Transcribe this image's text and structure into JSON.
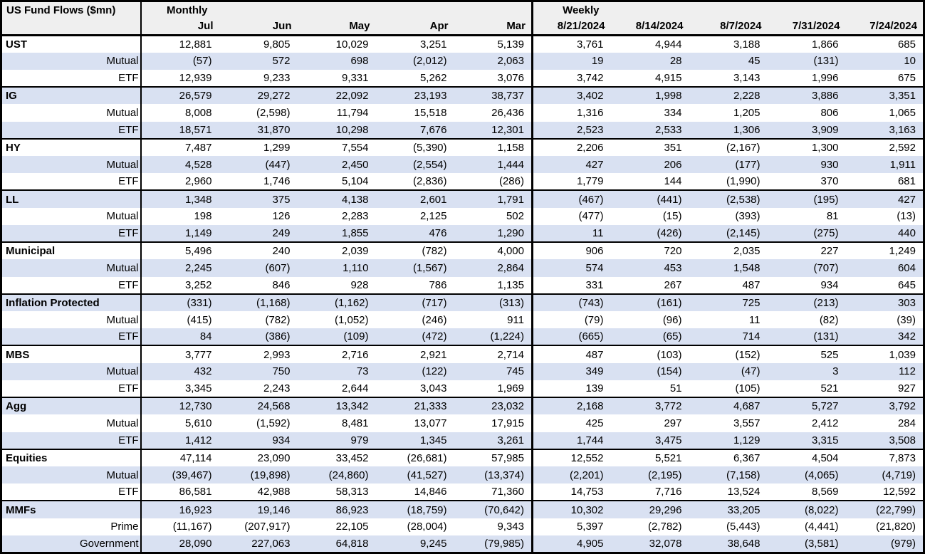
{
  "colors": {
    "row_shade": "#d9e1f2",
    "header_bg": "#efefef",
    "border": "#000000"
  },
  "table": {
    "title": "US Fund Flows ($mn)",
    "group_headers": {
      "monthly": "Monthly",
      "weekly": "Weekly"
    },
    "monthly_columns": [
      "Jul",
      "Jun",
      "May",
      "Apr",
      "Mar"
    ],
    "weekly_columns": [
      "8/21/2024",
      "8/14/2024",
      "8/7/2024",
      "7/31/2024",
      "7/24/2024"
    ],
    "groups": [
      {
        "name": "UST",
        "rows": [
          {
            "label": "UST",
            "monthly": [
              "12,881",
              "9,805",
              "10,029",
              "3,251",
              "5,139"
            ],
            "weekly": [
              "3,761",
              "4,944",
              "3,188",
              "1,866",
              "685"
            ]
          },
          {
            "label": "Mutual",
            "monthly": [
              "(57)",
              "572",
              "698",
              "(2,012)",
              "2,063"
            ],
            "weekly": [
              "19",
              "28",
              "45",
              "(131)",
              "10"
            ]
          },
          {
            "label": "ETF",
            "monthly": [
              "12,939",
              "9,233",
              "9,331",
              "5,262",
              "3,076"
            ],
            "weekly": [
              "3,742",
              "4,915",
              "3,143",
              "1,996",
              "675"
            ]
          }
        ]
      },
      {
        "name": "IG",
        "rows": [
          {
            "label": "IG",
            "monthly": [
              "26,579",
              "29,272",
              "22,092",
              "23,193",
              "38,737"
            ],
            "weekly": [
              "3,402",
              "1,998",
              "2,228",
              "3,886",
              "3,351"
            ]
          },
          {
            "label": "Mutual",
            "monthly": [
              "8,008",
              "(2,598)",
              "11,794",
              "15,518",
              "26,436"
            ],
            "weekly": [
              "1,316",
              "334",
              "1,205",
              "806",
              "1,065"
            ]
          },
          {
            "label": "ETF",
            "monthly": [
              "18,571",
              "31,870",
              "10,298",
              "7,676",
              "12,301"
            ],
            "weekly": [
              "2,523",
              "2,533",
              "1,306",
              "3,909",
              "3,163"
            ]
          }
        ]
      },
      {
        "name": "HY",
        "rows": [
          {
            "label": "HY",
            "monthly": [
              "7,487",
              "1,299",
              "7,554",
              "(5,390)",
              "1,158"
            ],
            "weekly": [
              "2,206",
              "351",
              "(2,167)",
              "1,300",
              "2,592"
            ]
          },
          {
            "label": "Mutual",
            "monthly": [
              "4,528",
              "(447)",
              "2,450",
              "(2,554)",
              "1,444"
            ],
            "weekly": [
              "427",
              "206",
              "(177)",
              "930",
              "1,911"
            ]
          },
          {
            "label": "ETF",
            "monthly": [
              "2,960",
              "1,746",
              "5,104",
              "(2,836)",
              "(286)"
            ],
            "weekly": [
              "1,779",
              "144",
              "(1,990)",
              "370",
              "681"
            ]
          }
        ]
      },
      {
        "name": "LL",
        "rows": [
          {
            "label": "LL",
            "monthly": [
              "1,348",
              "375",
              "4,138",
              "2,601",
              "1,791"
            ],
            "weekly": [
              "(467)",
              "(441)",
              "(2,538)",
              "(195)",
              "427"
            ]
          },
          {
            "label": "Mutual",
            "monthly": [
              "198",
              "126",
              "2,283",
              "2,125",
              "502"
            ],
            "weekly": [
              "(477)",
              "(15)",
              "(393)",
              "81",
              "(13)"
            ]
          },
          {
            "label": "ETF",
            "monthly": [
              "1,149",
              "249",
              "1,855",
              "476",
              "1,290"
            ],
            "weekly": [
              "11",
              "(426)",
              "(2,145)",
              "(275)",
              "440"
            ]
          }
        ]
      },
      {
        "name": "Municipal",
        "rows": [
          {
            "label": "Municipal",
            "monthly": [
              "5,496",
              "240",
              "2,039",
              "(782)",
              "4,000"
            ],
            "weekly": [
              "906",
              "720",
              "2,035",
              "227",
              "1,249"
            ]
          },
          {
            "label": "Mutual",
            "monthly": [
              "2,245",
              "(607)",
              "1,110",
              "(1,567)",
              "2,864"
            ],
            "weekly": [
              "574",
              "453",
              "1,548",
              "(707)",
              "604"
            ]
          },
          {
            "label": "ETF",
            "monthly": [
              "3,252",
              "846",
              "928",
              "786",
              "1,135"
            ],
            "weekly": [
              "331",
              "267",
              "487",
              "934",
              "645"
            ]
          }
        ]
      },
      {
        "name": "Inflation Protected",
        "rows": [
          {
            "label": "Inflation Protected",
            "monthly": [
              "(331)",
              "(1,168)",
              "(1,162)",
              "(717)",
              "(313)"
            ],
            "weekly": [
              "(743)",
              "(161)",
              "725",
              "(213)",
              "303"
            ]
          },
          {
            "label": "Mutual",
            "monthly": [
              "(415)",
              "(782)",
              "(1,052)",
              "(246)",
              "911"
            ],
            "weekly": [
              "(79)",
              "(96)",
              "11",
              "(82)",
              "(39)"
            ]
          },
          {
            "label": "ETF",
            "monthly": [
              "84",
              "(386)",
              "(109)",
              "(472)",
              "(1,224)"
            ],
            "weekly": [
              "(665)",
              "(65)",
              "714",
              "(131)",
              "342"
            ]
          }
        ]
      },
      {
        "name": "MBS",
        "rows": [
          {
            "label": "MBS",
            "monthly": [
              "3,777",
              "2,993",
              "2,716",
              "2,921",
              "2,714"
            ],
            "weekly": [
              "487",
              "(103)",
              "(152)",
              "525",
              "1,039"
            ]
          },
          {
            "label": "Mutual",
            "monthly": [
              "432",
              "750",
              "73",
              "(122)",
              "745"
            ],
            "weekly": [
              "349",
              "(154)",
              "(47)",
              "3",
              "112"
            ]
          },
          {
            "label": "ETF",
            "monthly": [
              "3,345",
              "2,243",
              "2,644",
              "3,043",
              "1,969"
            ],
            "weekly": [
              "139",
              "51",
              "(105)",
              "521",
              "927"
            ]
          }
        ]
      },
      {
        "name": "Agg",
        "rows": [
          {
            "label": "Agg",
            "monthly": [
              "12,730",
              "24,568",
              "13,342",
              "21,333",
              "23,032"
            ],
            "weekly": [
              "2,168",
              "3,772",
              "4,687",
              "5,727",
              "3,792"
            ]
          },
          {
            "label": "Mutual",
            "monthly": [
              "5,610",
              "(1,592)",
              "8,481",
              "13,077",
              "17,915"
            ],
            "weekly": [
              "425",
              "297",
              "3,557",
              "2,412",
              "284"
            ]
          },
          {
            "label": "ETF",
            "monthly": [
              "1,412",
              "934",
              "979",
              "1,345",
              "3,261"
            ],
            "weekly": [
              "1,744",
              "3,475",
              "1,129",
              "3,315",
              "3,508"
            ]
          }
        ]
      },
      {
        "name": "Equities",
        "rows": [
          {
            "label": "Equities",
            "monthly": [
              "47,114",
              "23,090",
              "33,452",
              "(26,681)",
              "57,985"
            ],
            "weekly": [
              "12,552",
              "5,521",
              "6,367",
              "4,504",
              "7,873"
            ]
          },
          {
            "label": "Mutual",
            "monthly": [
              "(39,467)",
              "(19,898)",
              "(24,860)",
              "(41,527)",
              "(13,374)"
            ],
            "weekly": [
              "(2,201)",
              "(2,195)",
              "(7,158)",
              "(4,065)",
              "(4,719)"
            ]
          },
          {
            "label": "ETF",
            "monthly": [
              "86,581",
              "42,988",
              "58,313",
              "14,846",
              "71,360"
            ],
            "weekly": [
              "14,753",
              "7,716",
              "13,524",
              "8,569",
              "12,592"
            ]
          }
        ]
      },
      {
        "name": "MMFs",
        "rows": [
          {
            "label": "MMFs",
            "monthly": [
              "16,923",
              "19,146",
              "86,923",
              "(18,759)",
              "(70,642)"
            ],
            "weekly": [
              "10,302",
              "29,296",
              "33,205",
              "(8,022)",
              "(22,799)"
            ]
          },
          {
            "label": "Prime",
            "monthly": [
              "(11,167)",
              "(207,917)",
              "22,105",
              "(28,004)",
              "9,343"
            ],
            "weekly": [
              "5,397",
              "(2,782)",
              "(5,443)",
              "(4,441)",
              "(21,820)"
            ]
          },
          {
            "label": "Government",
            "monthly": [
              "28,090",
              "227,063",
              "64,818",
              "9,245",
              "(79,985)"
            ],
            "weekly": [
              "4,905",
              "32,078",
              "38,648",
              "(3,581)",
              "(979)"
            ]
          }
        ]
      }
    ]
  }
}
